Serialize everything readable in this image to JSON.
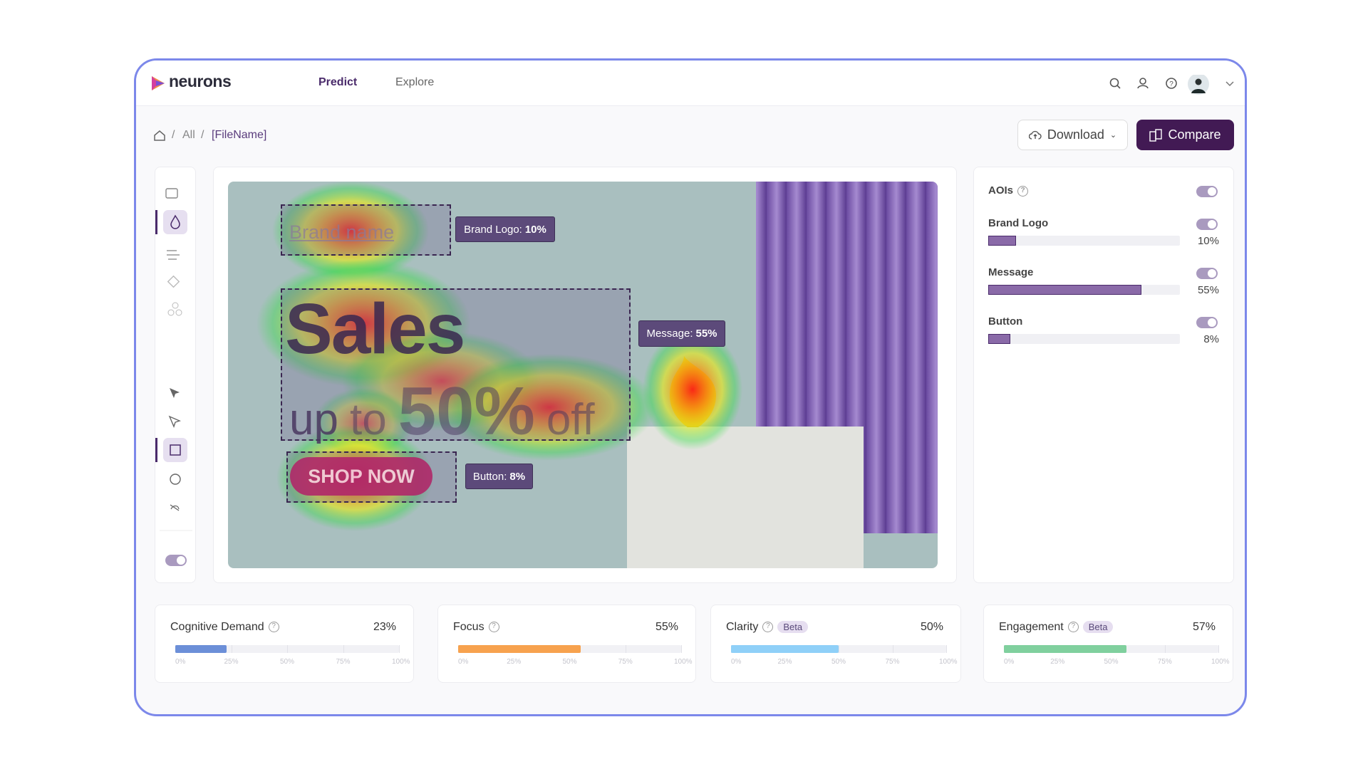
{
  "header": {
    "logo": "neurons",
    "nav": [
      "Predict",
      "Explore"
    ]
  },
  "breadcrumb": [
    "All",
    "[FileName]"
  ],
  "actions": {
    "download": "Download",
    "compare": "Compare"
  },
  "image": {
    "brand_text": "Brand name",
    "headline": "Sales",
    "sub_up": "up",
    "sub_to": "to",
    "sub_big": "50%",
    "sub_off": "off",
    "button_text": "SHOP NOW",
    "aoi_labels": [
      {
        "text": "Brand Logo:",
        "value": "10%"
      },
      {
        "text": "Message:",
        "value": "55%"
      },
      {
        "text": "Button:",
        "value": "8%"
      }
    ]
  },
  "aoi_panel": {
    "title": "AOIs",
    "items": [
      {
        "name": "Brand Logo",
        "value": 10,
        "label": "10%"
      },
      {
        "name": "Message",
        "value": 55,
        "label": "55%"
      },
      {
        "name": "Button",
        "value": 8,
        "label": "8%"
      }
    ]
  },
  "metrics": [
    {
      "name": "Cognitive Demand",
      "value": 23,
      "label": "23%",
      "color": "#6c8fd8"
    },
    {
      "name": "Focus",
      "value": 55,
      "label": "55%",
      "color": "#f7a24e"
    },
    {
      "name": "Clarity",
      "badge": "Beta",
      "value": 50,
      "label": "50%",
      "color": "#8fd0f8"
    },
    {
      "name": "Engagement",
      "badge": "Beta",
      "value": 57,
      "label": "57%",
      "color": "#80d09e"
    }
  ],
  "metric_ticks": [
    "0%",
    "25%",
    "50%",
    "75%",
    "100%"
  ]
}
